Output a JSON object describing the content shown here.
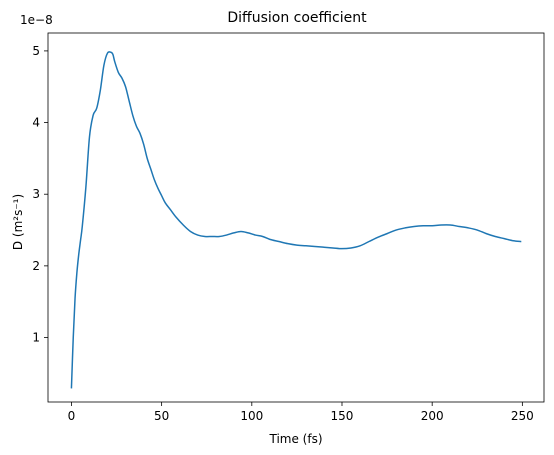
{
  "chart_data": {
    "type": "line",
    "title": "Diffusion coefficient",
    "xlabel": "Time (fs)",
    "ylabel": "D (m²s⁻¹)",
    "y_offset_label": "1e−8",
    "xlim": [
      -13,
      262
    ],
    "ylim": [
      0.1,
      5.25
    ],
    "xticks": [
      0,
      50,
      100,
      150,
      200,
      250
    ],
    "xtick_labels": [
      "0",
      "50",
      "100",
      "150",
      "200",
      "250"
    ],
    "yticks": [
      1,
      2,
      3,
      4,
      5
    ],
    "ytick_labels": [
      "1",
      "2",
      "3",
      "4",
      "5"
    ],
    "grid": false,
    "series": [
      {
        "color": "#1f77b4",
        "x": [
          0,
          1,
          2,
          3,
          4,
          5,
          6,
          8,
          10,
          12,
          14,
          16,
          18,
          20,
          22,
          23,
          24,
          26,
          28,
          30,
          32,
          34,
          36,
          38,
          40,
          42,
          44,
          46,
          48,
          50,
          52,
          55,
          58,
          62,
          66,
          70,
          74,
          78,
          82,
          86,
          90,
          94,
          98,
          102,
          106,
          110,
          115,
          120,
          125,
          130,
          135,
          140,
          145,
          150,
          155,
          160,
          165,
          170,
          175,
          180,
          185,
          190,
          195,
          200,
          205,
          210,
          215,
          220,
          225,
          230,
          235,
          240,
          245,
          249
        ],
        "values": [
          0.3,
          1.0,
          1.55,
          1.9,
          2.15,
          2.35,
          2.55,
          3.1,
          3.8,
          4.1,
          4.2,
          4.45,
          4.8,
          4.97,
          4.98,
          4.95,
          4.85,
          4.7,
          4.62,
          4.5,
          4.3,
          4.1,
          3.95,
          3.85,
          3.7,
          3.5,
          3.35,
          3.2,
          3.08,
          2.98,
          2.88,
          2.78,
          2.68,
          2.57,
          2.48,
          2.43,
          2.41,
          2.41,
          2.41,
          2.43,
          2.46,
          2.48,
          2.46,
          2.43,
          2.41,
          2.37,
          2.34,
          2.31,
          2.29,
          2.28,
          2.27,
          2.26,
          2.25,
          2.24,
          2.25,
          2.28,
          2.34,
          2.4,
          2.45,
          2.5,
          2.53,
          2.55,
          2.56,
          2.56,
          2.57,
          2.57,
          2.55,
          2.53,
          2.5,
          2.45,
          2.41,
          2.38,
          2.35,
          2.34
        ]
      }
    ]
  }
}
